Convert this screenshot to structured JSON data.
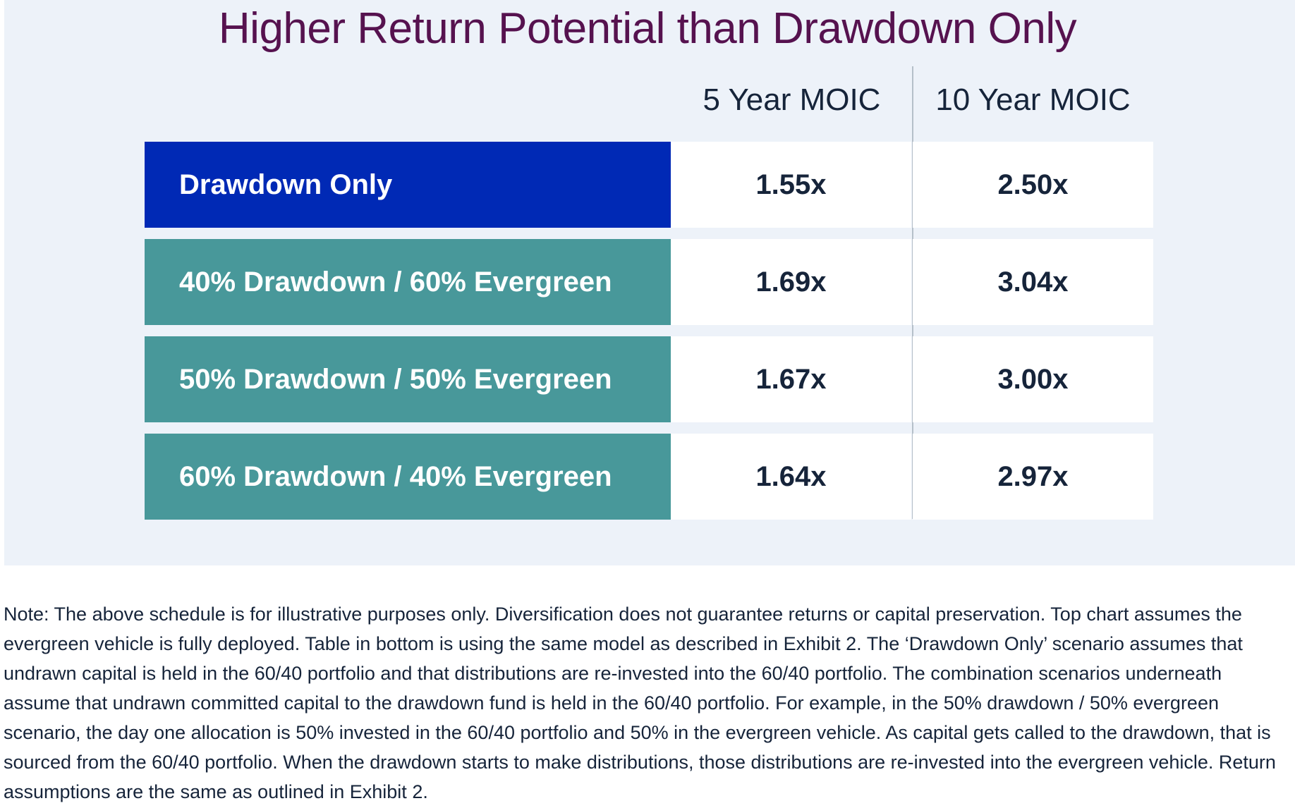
{
  "title": "Higher Return Potential than Drawdown Only",
  "colors": {
    "panel_bg": "#edf2f9",
    "title": "#56124f",
    "drawdown_only": "#0029b5",
    "combination": "#48989a",
    "cell_bg": "#ffffff",
    "text_dark": "#16243a"
  },
  "chart_data": {
    "type": "table",
    "title": "Higher Return Potential than Drawdown Only",
    "columns": [
      "5 Year MOIC",
      "10 Year MOIC"
    ],
    "rows": [
      {
        "label": "Drawdown Only",
        "values": [
          "1.55x",
          "2.50x"
        ],
        "color": "#0029b5"
      },
      {
        "label": "40% Drawdown / 60% Evergreen",
        "values": [
          "1.69x",
          "3.04x"
        ],
        "color": "#48989a"
      },
      {
        "label": "50% Drawdown / 50% Evergreen",
        "values": [
          "1.67x",
          "3.00x"
        ],
        "color": "#48989a"
      },
      {
        "label": "60% Drawdown / 40% Evergreen",
        "values": [
          "1.64x",
          "2.97x"
        ],
        "color": "#48989a"
      }
    ]
  },
  "note": "Note: The above schedule is for illustrative purposes only. Diversification does not guarantee returns or capital preservation. Top chart assumes the evergreen vehicle is fully deployed. Table in bottom is using the same model as described in Exhibit 2. The ‘Drawdown Only’ scenario assumes that undrawn capital is held in the 60/40 portfolio and that distributions are re-invested into the 60/40 portfolio. The combination scenarios underneath assume that undrawn committed capital to the drawdown fund is held in the 60/40 portfolio. For example, in the 50% drawdown / 50% evergreen scenario, the day one allocation is 50% invested in the 60/40 portfolio and 50% in the evergreen vehicle. As capital gets called to the drawdown, that is sourced from the 60/40 portfolio. When the drawdown starts to make distributions, those distributions are re-invested into the evergreen vehicle. Return assumptions are the same as outlined in Exhibit 2."
}
